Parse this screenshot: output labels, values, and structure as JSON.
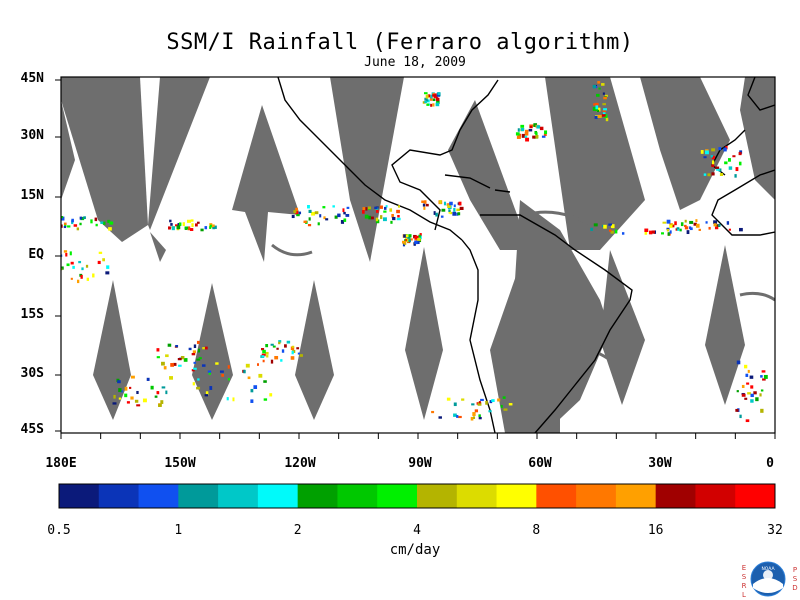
{
  "title": "SSM/I Rainfall (Ferraro algorithm)",
  "date": "June 18, 2009",
  "lat_labels": [
    "45N",
    "30N",
    "15N",
    "EQ",
    "15S",
    "30S",
    "45S"
  ],
  "lon_labels": [
    "180E",
    "150W",
    "120W",
    "90W",
    "60W",
    "30W",
    "0"
  ],
  "colorbar": {
    "colors": [
      "#0b1a7a",
      "#0b34b8",
      "#1050f0",
      "#009a9a",
      "#00c8c8",
      "#00fafa",
      "#00a000",
      "#00c800",
      "#00f000",
      "#b4b400",
      "#dcdc00",
      "#ffff00",
      "#ff5000",
      "#ff7800",
      "#ffa000",
      "#a00000",
      "#d20000",
      "#ff0000"
    ],
    "tick_labels": [
      "0.5",
      "1",
      "2",
      "4",
      "8",
      "16",
      "32"
    ],
    "unit": "cm/day"
  },
  "logo": {
    "left_text": "ESRL",
    "center_text": "NOAA",
    "right_text": "PSD"
  },
  "colors": {
    "no_data_swath": "#6e6e6e",
    "coastline": "#000000"
  }
}
